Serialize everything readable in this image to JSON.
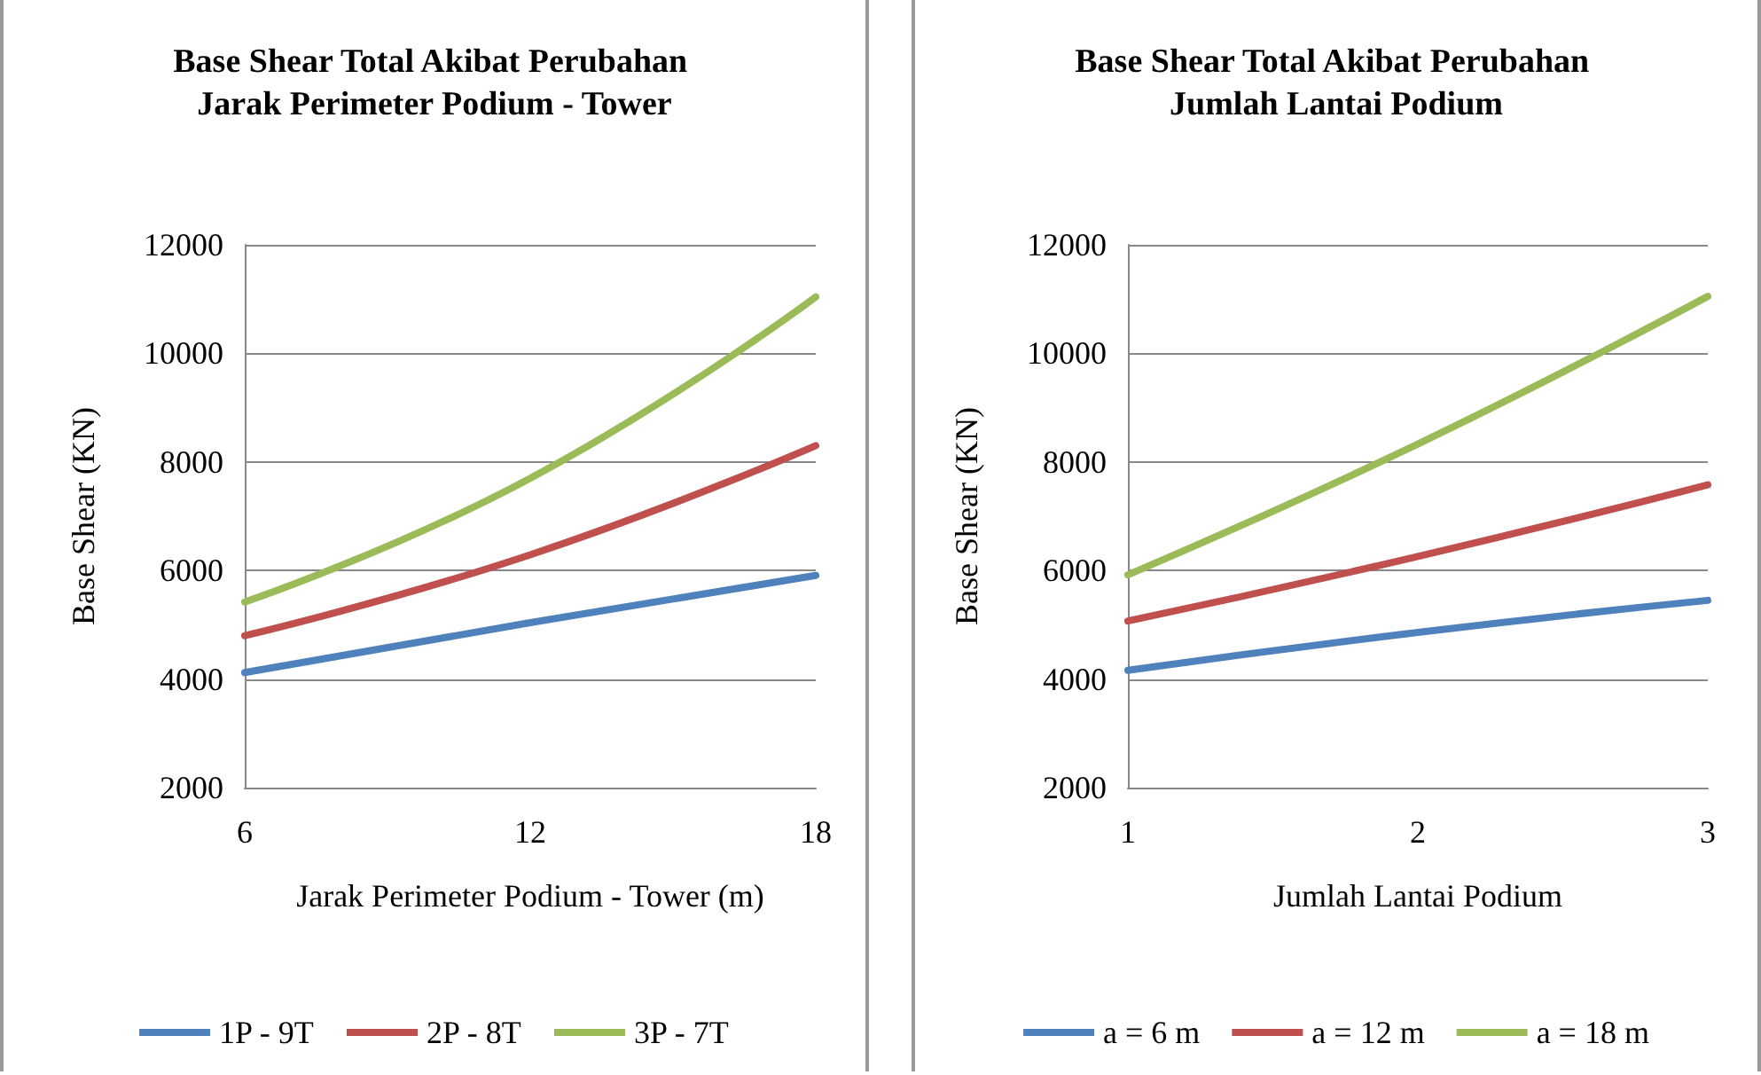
{
  "chart_data": [
    {
      "type": "line",
      "title": "Base Shear Total Akibat Perubahan Jarak Perimeter Podium - Tower",
      "xlabel": "Jarak Perimeter Podium - Tower (m)",
      "ylabel": "Base Shear (KN)",
      "x": [
        6,
        12,
        18
      ],
      "xlim": [
        6,
        18
      ],
      "xticks": [
        6,
        12,
        18
      ],
      "ylim": [
        2000,
        12000
      ],
      "yticks": [
        2000,
        4000,
        6000,
        8000,
        10000,
        12000
      ],
      "grid": "y",
      "legend": "bottom",
      "marker": "none",
      "line_style": "solid",
      "series": [
        {
          "name": "1P - 9T",
          "color": "#4f81bd",
          "values": [
            4120,
            5040,
            5910
          ]
        },
        {
          "name": "2P - 8T",
          "color": "#c0504d",
          "values": [
            4800,
            6290,
            8300
          ]
        },
        {
          "name": "3P - 7T",
          "color": "#9bbb59",
          "values": [
            5420,
            7700,
            11040
          ]
        }
      ]
    },
    {
      "type": "line",
      "title": "Base Shear Total Akibat Perubahan Jumlah Lantai Podium",
      "xlabel": "Jumlah Lantai Podium",
      "ylabel": "Base Shear (KN)",
      "x": [
        1,
        2,
        3
      ],
      "xlim": [
        1,
        3
      ],
      "xticks": [
        1,
        2,
        3
      ],
      "ylim": [
        2000,
        12000
      ],
      "yticks": [
        2000,
        4000,
        6000,
        8000,
        10000,
        12000
      ],
      "grid": "y",
      "legend": "bottom",
      "marker": "none",
      "line_style": "solid",
      "series": [
        {
          "name": "a = 6 m",
          "color": "#4f81bd",
          "values": [
            4160,
            4860,
            5450
          ]
        },
        {
          "name": "a = 12 m",
          "color": "#c0504d",
          "values": [
            5070,
            6260,
            7580
          ]
        },
        {
          "name": "a = 18 m",
          "color": "#9bbb59",
          "values": [
            5920,
            8330,
            11050
          ]
        }
      ]
    }
  ]
}
